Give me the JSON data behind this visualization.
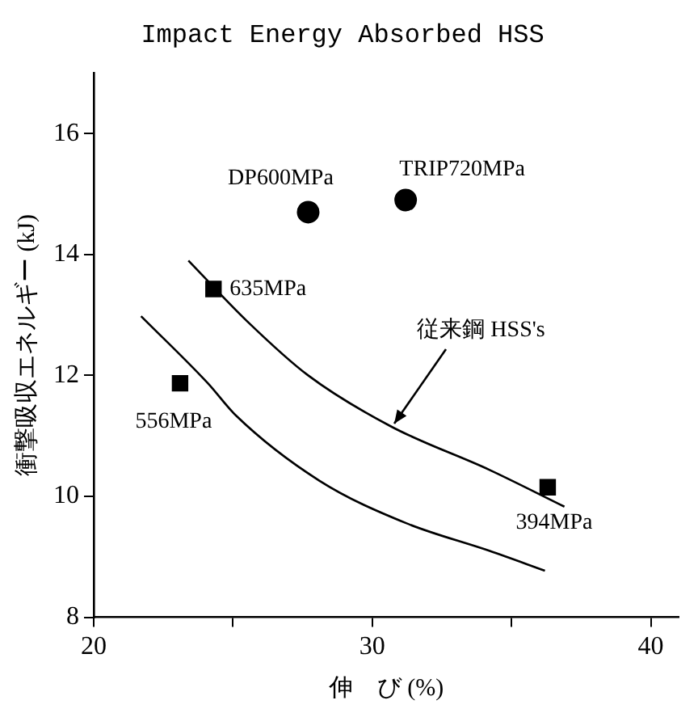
{
  "chart_data": {
    "type": "scatter",
    "title": "Impact Energy Absorbed HSS",
    "xlabel": "伸　び (%)",
    "ylabel": "衝撃吸収エネルギー (kJ)",
    "xlim": [
      20,
      41
    ],
    "ylim": [
      8,
      17
    ],
    "xticks": [
      20,
      {
        "value": 25,
        "label": null
      },
      30,
      {
        "value": 35,
        "label": null
      },
      40
    ],
    "yticks": [
      8,
      10,
      12,
      14,
      16
    ],
    "grid": false,
    "legend": false,
    "series": [
      {
        "type": "scatter",
        "marker": "circle",
        "color": "#000000",
        "x": [
          27.7,
          31.2
        ],
        "values": [
          14.7,
          14.9
        ]
      },
      {
        "type": "scatter",
        "marker": "square",
        "color": "#000000",
        "x": [
          24.3,
          23.1,
          36.3
        ],
        "values": [
          13.43,
          11.87,
          10.15
        ]
      },
      {
        "type": "line",
        "marker": "none",
        "color": "#000000",
        "x": [
          23.4,
          25.5,
          27.7,
          30.7,
          34.2,
          36.9
        ],
        "values": [
          13.9,
          12.9,
          12.0,
          11.15,
          10.44,
          9.83
        ]
      },
      {
        "type": "line",
        "marker": "none",
        "color": "#000000",
        "x": [
          21.7,
          24.1,
          25.1,
          28.1,
          31.2,
          34.2,
          36.2
        ],
        "values": [
          12.98,
          11.87,
          11.34,
          10.26,
          9.56,
          9.1,
          8.77
        ]
      }
    ],
    "annotations": [
      {
        "text": "DP600MPa",
        "x": 27.7,
        "y": 14.7
      },
      {
        "text": "TRIP720MPa",
        "x": 31.2,
        "y": 14.9
      },
      {
        "text": "635MPa",
        "x": 24.3,
        "y": 13.43
      },
      {
        "text": "556MPa",
        "x": 23.1,
        "y": 11.87
      },
      {
        "text": "394MPa",
        "x": 36.3,
        "y": 10.15
      },
      {
        "text": "従来鋼 HSS's",
        "x": 30.8,
        "y": 11.2
      }
    ]
  }
}
